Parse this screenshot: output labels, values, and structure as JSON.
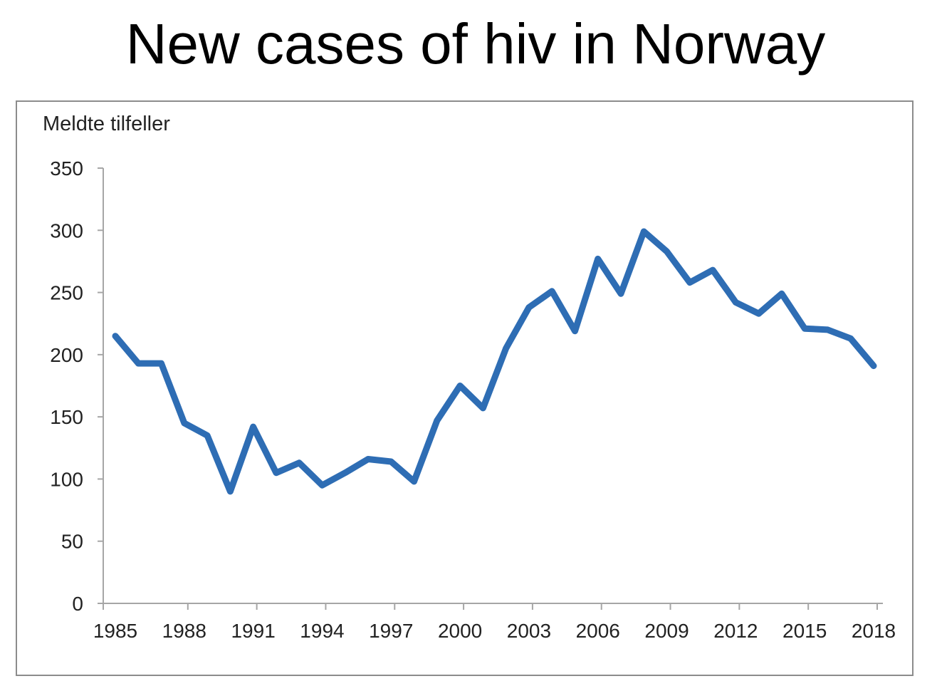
{
  "chart_data": {
    "type": "line",
    "title": "New cases of hiv in Norway",
    "ylabel": "Meldte tilfeller",
    "xlabel": "",
    "ylim": [
      0,
      350
    ],
    "y_ticks": [
      0,
      50,
      100,
      150,
      200,
      250,
      300,
      350
    ],
    "x_ticks": [
      1985,
      1988,
      1991,
      1994,
      1997,
      2000,
      2003,
      2006,
      2009,
      2012,
      2015,
      2018
    ],
    "xlim": [
      1985,
      2018
    ],
    "grid": false,
    "series": [
      {
        "color": "#2e6db4",
        "x": [
          1985,
          1986,
          1987,
          1988,
          1989,
          1990,
          1991,
          1992,
          1993,
          1994,
          1995,
          1996,
          1997,
          1998,
          1999,
          2000,
          2001,
          2002,
          2003,
          2004,
          2005,
          2006,
          2007,
          2008,
          2009,
          2010,
          2011,
          2012,
          2013,
          2014,
          2015,
          2016,
          2017,
          2018
        ],
        "values": [
          215,
          193,
          193,
          145,
          135,
          90,
          142,
          105,
          113,
          95,
          105,
          116,
          114,
          98,
          147,
          175,
          157,
          205,
          238,
          251,
          219,
          277,
          249,
          299,
          283,
          258,
          268,
          242,
          233,
          249,
          221,
          220,
          213,
          191
        ]
      }
    ]
  }
}
